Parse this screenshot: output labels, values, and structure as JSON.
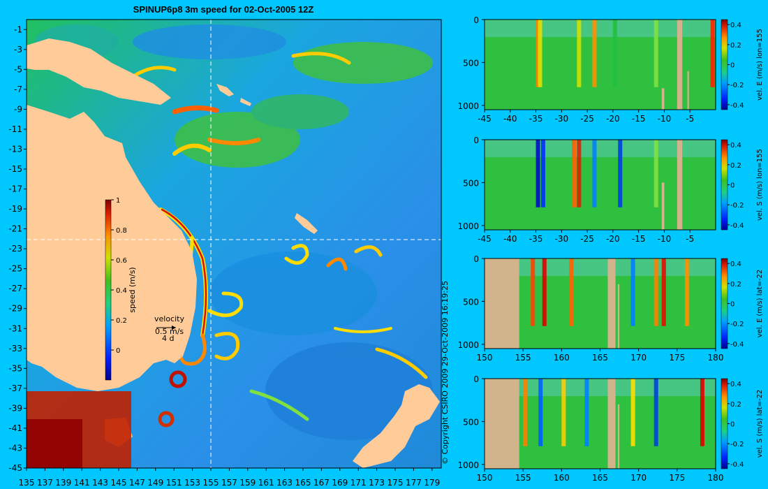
{
  "title": "SPINUP6p8 3m speed for 02-Oct-2005 12Z",
  "copyright": "© Copyright CSIRO 2009   29-Oct-2009 16:19:25",
  "colors": {
    "background": "#00c8ff",
    "land": "#ffcc99",
    "bathy_land": "#d2b48c",
    "crosshair": "#ffffff"
  },
  "chart_data": [
    {
      "type": "heatmap",
      "name": "map",
      "title": "SPINUP6p8 3m speed for 02-Oct-2005 12Z",
      "xticks": [
        "135",
        "137",
        "139",
        "141",
        "143",
        "145",
        "147",
        "149",
        "151",
        "153",
        "155",
        "157",
        "159",
        "161",
        "163",
        "165",
        "167",
        "169",
        "171",
        "173",
        "175",
        "177",
        "179"
      ],
      "yticks": [
        "-1",
        "-3",
        "-5",
        "-7",
        "-9",
        "-11",
        "-13",
        "-15",
        "-17",
        "-19",
        "-21",
        "-23",
        "-25",
        "-27",
        "-29",
        "-31",
        "-33",
        "-35",
        "-37",
        "-39",
        "-41",
        "-43",
        "-45"
      ],
      "xlim": [
        135,
        180
      ],
      "ylim": [
        -45,
        0
      ],
      "crosshair": {
        "lon": 155,
        "lat": -22
      },
      "colorbar": {
        "label": "speed (m/s)",
        "ticks": [
          "1",
          "0.8",
          "0.6",
          "0.4",
          "0.2",
          "0"
        ],
        "range": [
          -0.2,
          1
        ]
      },
      "velocity_key": {
        "label": "velocity",
        "speed": "0.5 m/s",
        "duration": "4 d"
      }
    },
    {
      "type": "heatmap",
      "name": "section-1",
      "xticks": [
        "-45",
        "-40",
        "-35",
        "-30",
        "-25",
        "-20",
        "-15",
        "-10",
        "-5"
      ],
      "yticks": [
        "0",
        "500",
        "1000"
      ],
      "xlim": [
        -45,
        0
      ],
      "ylim": [
        1050,
        0
      ],
      "colorbar": {
        "label": "vel. E (m/s) lon=155",
        "ticks": [
          "0.4",
          "0.2",
          "0",
          "-0.2",
          "-0.4"
        ],
        "range": [
          -0.45,
          0.45
        ]
      }
    },
    {
      "type": "heatmap",
      "name": "section-2",
      "xticks": [
        "-45",
        "-40",
        "-35",
        "-30",
        "-25",
        "-20",
        "-15",
        "-10",
        "-5"
      ],
      "yticks": [
        "0",
        "500",
        "1000"
      ],
      "xlim": [
        -45,
        0
      ],
      "ylim": [
        1050,
        0
      ],
      "colorbar": {
        "label": "vel. S (m/s) lon=155",
        "ticks": [
          "0.4",
          "0.2",
          "0",
          "-0.2",
          "-0.4"
        ],
        "range": [
          -0.45,
          0.45
        ]
      }
    },
    {
      "type": "heatmap",
      "name": "section-3",
      "xticks": [
        "150",
        "155",
        "160",
        "165",
        "170",
        "175",
        "180"
      ],
      "yticks": [
        "0",
        "500",
        "1000"
      ],
      "xlim": [
        150,
        180
      ],
      "ylim": [
        1050,
        0
      ],
      "colorbar": {
        "label": "vel. E (m/s) lat=-22",
        "ticks": [
          "0.4",
          "0.2",
          "0",
          "-0.2",
          "-0.4"
        ],
        "range": [
          -0.45,
          0.45
        ]
      }
    },
    {
      "type": "heatmap",
      "name": "section-4",
      "xticks": [
        "150",
        "155",
        "160",
        "165",
        "170",
        "175",
        "180"
      ],
      "yticks": [
        "0",
        "500",
        "1000"
      ],
      "xlim": [
        150,
        180
      ],
      "ylim": [
        1050,
        0
      ],
      "colorbar": {
        "label": "vel. S (m/s) lat=-22",
        "ticks": [
          "0.4",
          "0.2",
          "0",
          "-0.2",
          "-0.4"
        ],
        "range": [
          -0.45,
          0.45
        ]
      }
    }
  ]
}
